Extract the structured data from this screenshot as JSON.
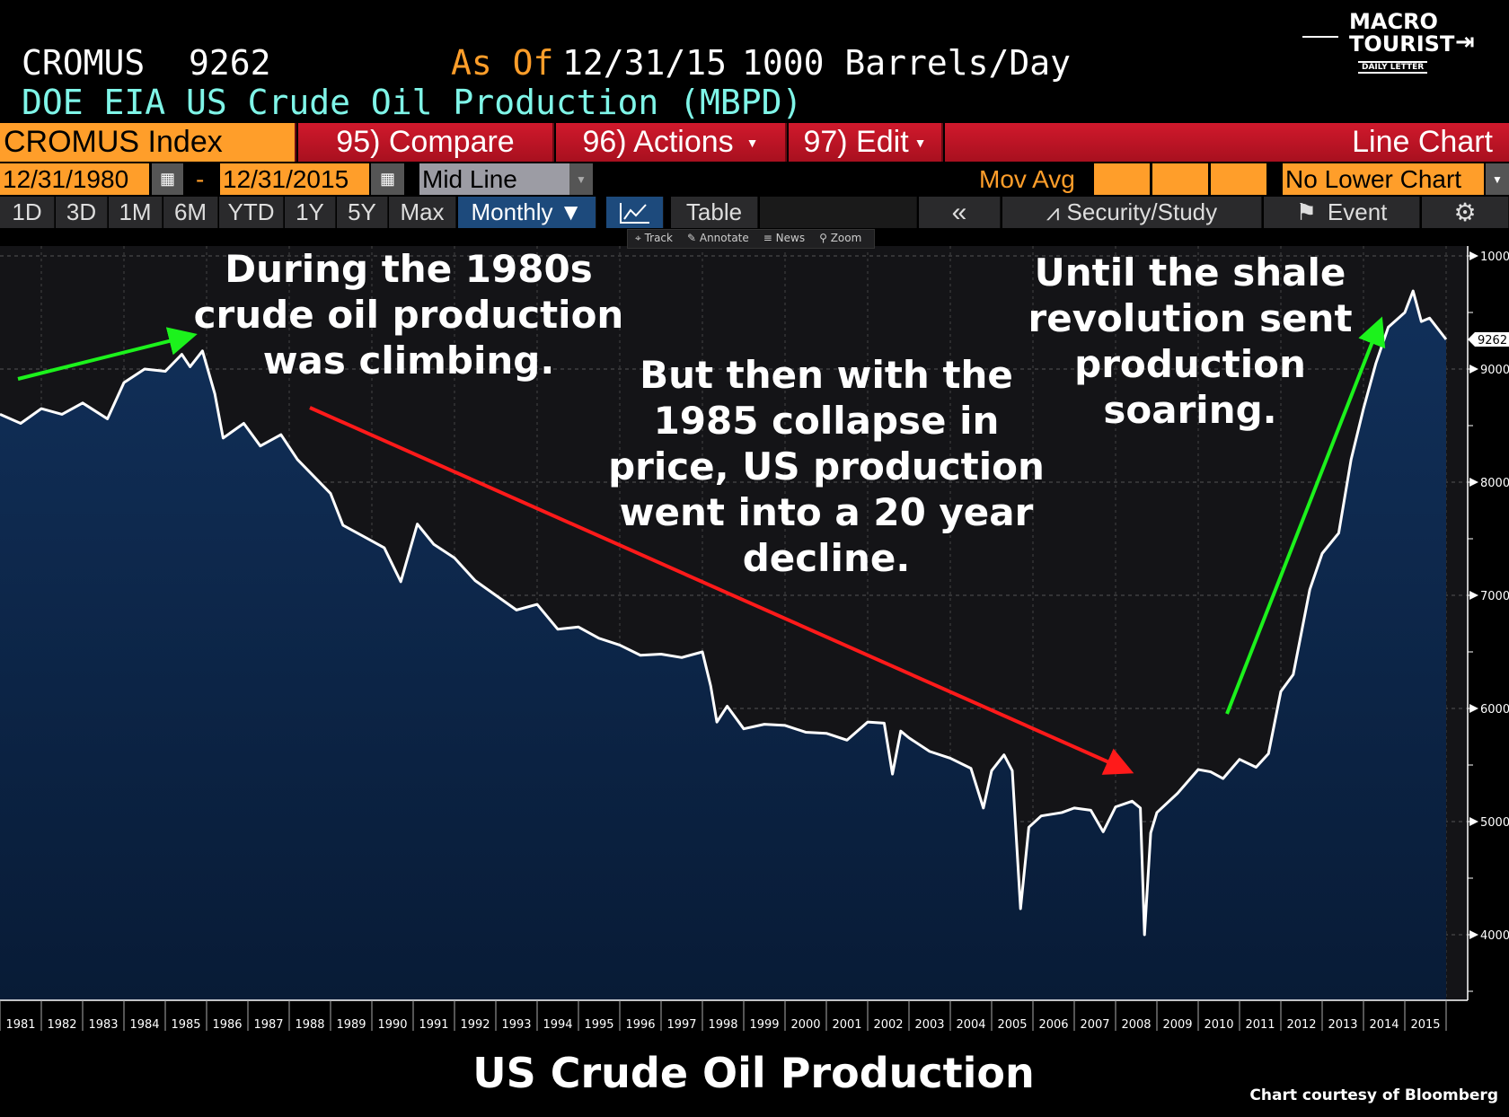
{
  "header": {
    "ticker": "CROMUS",
    "last_value": "9262",
    "as_of_label": "As Of",
    "as_of_date": "12/31/15",
    "units": "1000 Barrels/Day",
    "description": "DOE EIA US Crude Oil Production (MBPD)"
  },
  "logo": {
    "line1": "MACRO",
    "line2": "TOURIST",
    "line3": "DAILY LETTER"
  },
  "toolbar1": {
    "security": "CROMUS Index",
    "compare": "95) Compare",
    "actions": "96) Actions",
    "edit": "97) Edit",
    "chart_type": "Line Chart"
  },
  "toolbar2": {
    "start_date": "12/31/1980",
    "dash": "-",
    "end_date": "12/31/2015",
    "line_mode": "Mid Line",
    "mov_avg": "Mov Avg",
    "lower_chart": "No Lower Chart"
  },
  "toolbar3": {
    "periods": [
      "1D",
      "3D",
      "1M",
      "6M",
      "YTD",
      "1Y",
      "5Y",
      "Max"
    ],
    "frequency": "Monthly ▼",
    "table": "Table",
    "back": "«",
    "security_study": "Security/Study",
    "event": "Event"
  },
  "subtoolbar": {
    "track": "Track",
    "annotate": "Annotate",
    "news": "News",
    "zoom": "Zoom"
  },
  "colors": {
    "accent_orange": "#ff9e2a",
    "toolbar_red": "#c8162a",
    "fill": "#0c2446",
    "line": "#ffffff",
    "arrow_green": "#1cf21c",
    "arrow_red": "#ff1a1a"
  },
  "chart_data": {
    "type": "area",
    "title": "US Crude Oil Production",
    "credit": "Chart courtesy of Bloomberg",
    "ylabel": "1000 Barrels/Day",
    "ylim": [
      3400,
      10200
    ],
    "yticks": [
      4000,
      5000,
      6000,
      7000,
      8000,
      9000,
      10000
    ],
    "last_value_label": "9262",
    "x_tick_labels": [
      "1981",
      "1982",
      "1983",
      "1984",
      "1985",
      "1986",
      "1987",
      "1988",
      "1989",
      "1990",
      "1991",
      "1992",
      "1993",
      "1994",
      "1995",
      "1996",
      "1997",
      "1998",
      "1999",
      "2000",
      "2001",
      "2002",
      "2003",
      "2004",
      "2005",
      "2006",
      "2007",
      "2008",
      "2009",
      "2010",
      "2011",
      "2012",
      "2013",
      "2014",
      "2015"
    ],
    "xlim": [
      1981,
      2016
    ],
    "points": [
      [
        1981.0,
        8600
      ],
      [
        1981.5,
        8520
      ],
      [
        1982.0,
        8650
      ],
      [
        1982.5,
        8600
      ],
      [
        1983.0,
        8700
      ],
      [
        1983.6,
        8560
      ],
      [
        1984.0,
        8880
      ],
      [
        1984.5,
        9000
      ],
      [
        1985.0,
        8980
      ],
      [
        1985.4,
        9130
      ],
      [
        1985.6,
        9020
      ],
      [
        1985.9,
        9160
      ],
      [
        1986.2,
        8780
      ],
      [
        1986.4,
        8390
      ],
      [
        1986.9,
        8520
      ],
      [
        1987.3,
        8320
      ],
      [
        1987.8,
        8420
      ],
      [
        1988.2,
        8200
      ],
      [
        1988.6,
        8050
      ],
      [
        1989.0,
        7900
      ],
      [
        1989.3,
        7620
      ],
      [
        1989.8,
        7520
      ],
      [
        1990.3,
        7420
      ],
      [
        1990.7,
        7120
      ],
      [
        1991.1,
        7630
      ],
      [
        1991.5,
        7450
      ],
      [
        1992.0,
        7330
      ],
      [
        1992.5,
        7130
      ],
      [
        1993.0,
        7000
      ],
      [
        1993.5,
        6870
      ],
      [
        1994.0,
        6920
      ],
      [
        1994.5,
        6700
      ],
      [
        1995.0,
        6720
      ],
      [
        1995.5,
        6620
      ],
      [
        1996.0,
        6560
      ],
      [
        1996.5,
        6470
      ],
      [
        1997.0,
        6480
      ],
      [
        1997.5,
        6450
      ],
      [
        1998.0,
        6500
      ],
      [
        1998.2,
        6200
      ],
      [
        1998.35,
        5880
      ],
      [
        1998.6,
        6020
      ],
      [
        1999.0,
        5820
      ],
      [
        1999.5,
        5860
      ],
      [
        2000.0,
        5850
      ],
      [
        2000.5,
        5790
      ],
      [
        2001.0,
        5780
      ],
      [
        2001.5,
        5720
      ],
      [
        2002.0,
        5880
      ],
      [
        2002.4,
        5870
      ],
      [
        2002.6,
        5420
      ],
      [
        2002.8,
        5800
      ],
      [
        2003.0,
        5740
      ],
      [
        2003.5,
        5620
      ],
      [
        2004.0,
        5560
      ],
      [
        2004.5,
        5470
      ],
      [
        2004.8,
        5120
      ],
      [
        2005.0,
        5450
      ],
      [
        2005.3,
        5590
      ],
      [
        2005.5,
        5450
      ],
      [
        2005.7,
        4230
      ],
      [
        2005.9,
        4950
      ],
      [
        2006.2,
        5050
      ],
      [
        2006.7,
        5080
      ],
      [
        2007.0,
        5120
      ],
      [
        2007.4,
        5100
      ],
      [
        2007.7,
        4910
      ],
      [
        2008.0,
        5130
      ],
      [
        2008.4,
        5180
      ],
      [
        2008.6,
        5120
      ],
      [
        2008.7,
        4000
      ],
      [
        2008.85,
        4900
      ],
      [
        2009.0,
        5080
      ],
      [
        2009.5,
        5250
      ],
      [
        2010.0,
        5460
      ],
      [
        2010.3,
        5440
      ],
      [
        2010.6,
        5380
      ],
      [
        2011.0,
        5550
      ],
      [
        2011.4,
        5480
      ],
      [
        2011.7,
        5600
      ],
      [
        2012.0,
        6150
      ],
      [
        2012.3,
        6300
      ],
      [
        2012.7,
        7050
      ],
      [
        2013.0,
        7370
      ],
      [
        2013.4,
        7550
      ],
      [
        2013.7,
        8200
      ],
      [
        2014.0,
        8650
      ],
      [
        2014.3,
        9050
      ],
      [
        2014.6,
        9370
      ],
      [
        2015.0,
        9500
      ],
      [
        2015.2,
        9690
      ],
      [
        2015.4,
        9420
      ],
      [
        2015.6,
        9450
      ],
      [
        2016.0,
        9262
      ]
    ]
  },
  "annotations": {
    "a1": [
      "During the 1980s",
      "crude oil production",
      "was climbing."
    ],
    "a2": [
      "But then with the",
      "1985 collapse in",
      "price, US production",
      "went into a 20 year",
      "decline."
    ],
    "a3": [
      "Until the shale",
      "revolution sent",
      "production",
      "soaring."
    ]
  }
}
